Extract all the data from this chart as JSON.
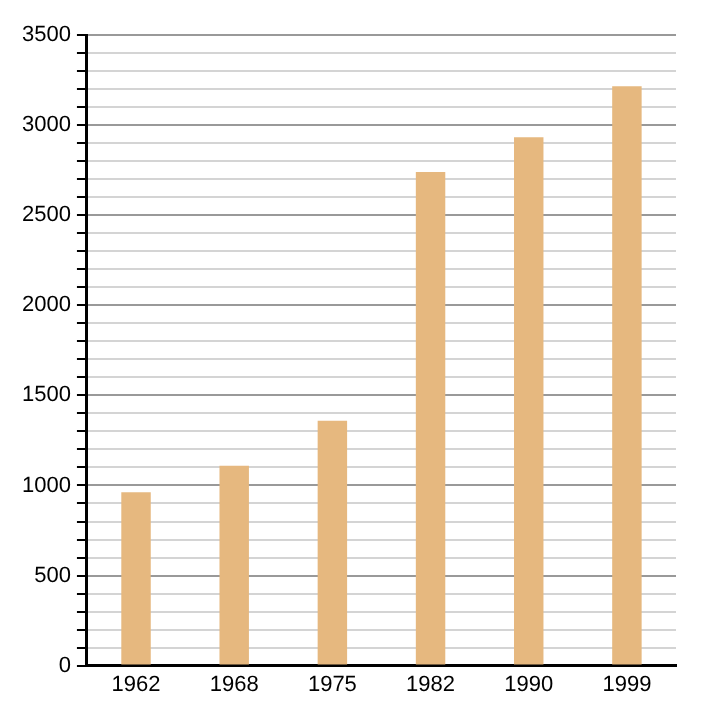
{
  "chart_data": {
    "type": "bar",
    "categories": [
      "1962",
      "1968",
      "1975",
      "1982",
      "1990",
      "1999"
    ],
    "values": [
      963,
      1110,
      1359,
      2741,
      2933,
      3216
    ],
    "color": "#e6b87f",
    "ylim": [
      0,
      3500
    ],
    "yticks": [
      0,
      {
        "value": 100,
        "label": null
      },
      {
        "value": 200,
        "label": null
      },
      {
        "value": 300,
        "label": null
      },
      {
        "value": 400,
        "label": null
      },
      500,
      {
        "value": 600,
        "label": null
      },
      {
        "value": 700,
        "label": null
      },
      {
        "value": 800,
        "label": null
      },
      {
        "value": 900,
        "label": null
      },
      1000,
      {
        "value": 1100,
        "label": null
      },
      {
        "value": 1200,
        "label": null
      },
      {
        "value": 1300,
        "label": null
      },
      {
        "value": 1400,
        "label": null
      },
      1500,
      {
        "value": 1600,
        "label": null
      },
      {
        "value": 1700,
        "label": null
      },
      {
        "value": 1800,
        "label": null
      },
      {
        "value": 1900,
        "label": null
      },
      2000,
      {
        "value": 2100,
        "label": null
      },
      {
        "value": 2200,
        "label": null
      },
      {
        "value": 2300,
        "label": null
      },
      {
        "value": 2400,
        "label": null
      },
      2500,
      {
        "value": 2600,
        "label": null
      },
      {
        "value": 2700,
        "label": null
      },
      {
        "value": 2800,
        "label": null
      },
      {
        "value": 2900,
        "label": null
      },
      3000,
      {
        "value": 3100,
        "label": null
      },
      {
        "value": 3200,
        "label": null
      },
      {
        "value": 3300,
        "label": null
      },
      {
        "value": 3400,
        "label": null
      },
      3500
    ],
    "grid": "y"
  }
}
